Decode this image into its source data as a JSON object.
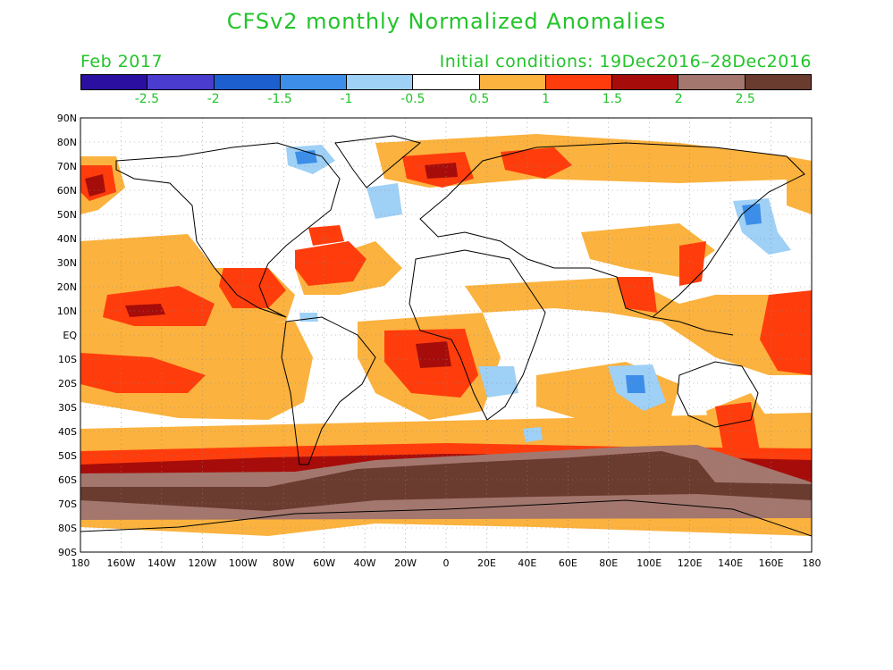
{
  "title": "CFSv2 monthly Normalized Anomalies",
  "month": "Feb 2017",
  "initial_conditions": "Initial conditions: 19Dec2016–28Dec2016",
  "colorbar": {
    "colors": [
      "#2a0fa0",
      "#4a3ccf",
      "#1e5fd0",
      "#3d8ee8",
      "#9fd0f6",
      "#ffffff",
      "#fbb23e",
      "#ff3d0c",
      "#a60d0a",
      "#a3776d",
      "#6a3b2f"
    ],
    "labels": [
      "-2.5",
      "-2",
      "-1.5",
      "-1",
      "-0.5",
      "0.5",
      "1",
      "1.5",
      "2",
      "2.5"
    ]
  },
  "lat_labels": [
    "90N",
    "80N",
    "70N",
    "60N",
    "50N",
    "40N",
    "30N",
    "20N",
    "10N",
    "EQ",
    "10S",
    "20S",
    "30S",
    "40S",
    "50S",
    "60S",
    "70S",
    "80S",
    "90S"
  ],
  "lon_labels": [
    "180",
    "160W",
    "140W",
    "120W",
    "100W",
    "80W",
    "60W",
    "40W",
    "20W",
    "0",
    "20E",
    "40E",
    "60E",
    "80E",
    "100E",
    "120E",
    "140E",
    "160E",
    "180"
  ]
}
